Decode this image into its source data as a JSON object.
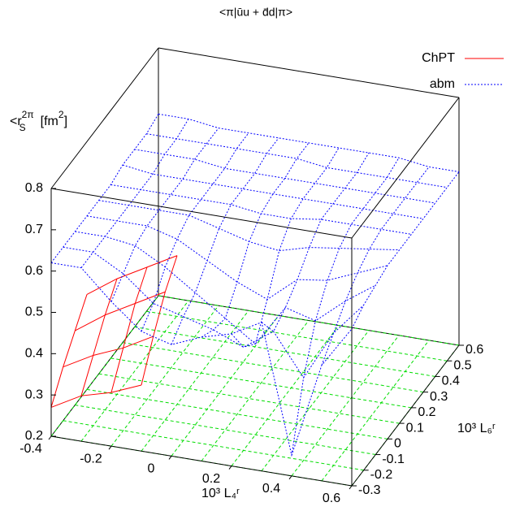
{
  "chart_data": {
    "type": "surface3d",
    "title": "<π|ūu + d̄d|π>",
    "xlabel": "10³ L₄ʳ",
    "ylabel": "10³ L₆ʳ",
    "zlabel": [
      "<r",
      "2",
      "π",
      "S",
      "[fm",
      "2",
      "]"
    ],
    "xlim": [
      -0.4,
      0.6
    ],
    "xticks": [
      -0.4,
      -0.2,
      0,
      0.2,
      0.4,
      0.6
    ],
    "ylim": [
      -0.3,
      0.6
    ],
    "yticks": [
      -0.3,
      -0.2,
      -0.1,
      0,
      0.1,
      0.2,
      0.3,
      0.4,
      0.5,
      0.6
    ],
    "zlim": [
      0.2,
      0.8
    ],
    "zticks": [
      0.2,
      0.3,
      0.4,
      0.5,
      0.6,
      0.7,
      0.8
    ],
    "base_grid": true,
    "base_grid_color": "#00dd00",
    "legend_position": "top-right",
    "series": [
      {
        "name": "ChPT",
        "color": "#ff0000",
        "dash": false,
        "x": [
          -0.4,
          -0.3,
          -0.2,
          -0.1
        ],
        "y": [
          -0.3,
          -0.2,
          -0.1,
          0
        ],
        "values": [
          [
            0.27,
            0.31,
            0.33,
            0.36
          ],
          [
            0.33,
            0.37,
            0.4,
            0.44
          ],
          [
            0.38,
            0.43,
            0.47,
            0.51
          ],
          [
            0.43,
            0.48,
            0.52,
            0.56
          ]
        ]
      },
      {
        "name": "abm",
        "color": "#0000ff",
        "dash": true,
        "x": [
          -0.4,
          -0.3,
          -0.2,
          -0.1,
          0,
          0.1,
          0.2,
          0.3,
          0.4,
          0.5,
          0.6
        ],
        "y": [
          -0.3,
          -0.2,
          -0.1,
          0,
          0.1,
          0.2,
          0.3,
          0.4,
          0.5,
          0.6
        ],
        "values": [
          [
            0.62,
            0.62,
            0.55,
            0.49,
            0.47,
            0.5,
            0.52,
            0.56,
            0.25,
            0.48,
            0.58
          ],
          [
            0.62,
            0.62,
            0.58,
            0.52,
            0.5,
            0.48,
            0.45,
            0.5,
            0.4,
            0.52,
            0.6
          ],
          [
            0.62,
            0.62,
            0.61,
            0.57,
            0.52,
            0.47,
            0.42,
            0.52,
            0.5,
            0.56,
            0.61
          ],
          [
            0.62,
            0.62,
            0.62,
            0.6,
            0.56,
            0.52,
            0.49,
            0.55,
            0.56,
            0.59,
            0.62
          ],
          [
            0.62,
            0.62,
            0.62,
            0.62,
            0.6,
            0.58,
            0.57,
            0.59,
            0.6,
            0.61,
            0.62
          ],
          [
            0.62,
            0.62,
            0.62,
            0.62,
            0.62,
            0.61,
            0.61,
            0.62,
            0.62,
            0.62,
            0.62
          ],
          [
            0.63,
            0.62,
            0.62,
            0.62,
            0.62,
            0.62,
            0.62,
            0.62,
            0.62,
            0.62,
            0.62
          ],
          [
            0.63,
            0.63,
            0.63,
            0.62,
            0.62,
            0.62,
            0.62,
            0.62,
            0.62,
            0.62,
            0.62
          ],
          [
            0.63,
            0.63,
            0.63,
            0.63,
            0.63,
            0.63,
            0.62,
            0.62,
            0.62,
            0.62,
            0.62
          ],
          [
            0.64,
            0.64,
            0.63,
            0.63,
            0.63,
            0.63,
            0.63,
            0.63,
            0.63,
            0.62,
            0.62
          ]
        ]
      }
    ]
  }
}
